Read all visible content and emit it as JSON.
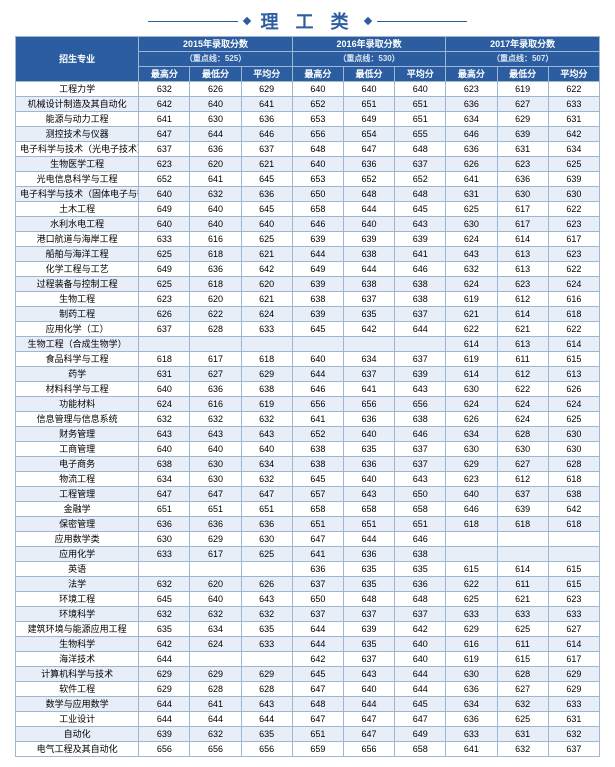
{
  "title": "理 工 类",
  "header": {
    "col_major": "招生专业",
    "years": [
      {
        "line1": "2015年录取分数",
        "line2": "（重点线：525）"
      },
      {
        "line1": "2016年录取分数",
        "line2": "（重点线：530）"
      },
      {
        "line1": "2017年录取分数",
        "line2": "（重点线：507）"
      }
    ],
    "subcols": [
      "最高分",
      "最低分",
      "平均分",
      "最高分",
      "最低分",
      "平均分",
      "最高分",
      "最低分",
      "平均分"
    ]
  },
  "rows": [
    [
      "工程力学",
      "632",
      "626",
      "629",
      "640",
      "640",
      "640",
      "623",
      "619",
      "622"
    ],
    [
      "机械设计制造及其自动化",
      "642",
      "640",
      "641",
      "652",
      "651",
      "651",
      "636",
      "627",
      "633"
    ],
    [
      "能源与动力工程",
      "641",
      "630",
      "636",
      "653",
      "649",
      "651",
      "634",
      "629",
      "631"
    ],
    [
      "测控技术与仪器",
      "647",
      "644",
      "646",
      "656",
      "654",
      "655",
      "646",
      "639",
      "642"
    ],
    [
      "电子科学与技术（光电子技术）",
      "637",
      "636",
      "637",
      "648",
      "647",
      "648",
      "636",
      "631",
      "634"
    ],
    [
      "生物医学工程",
      "623",
      "620",
      "621",
      "640",
      "636",
      "637",
      "626",
      "623",
      "625"
    ],
    [
      "光电信息科学与工程",
      "652",
      "641",
      "645",
      "653",
      "652",
      "652",
      "641",
      "636",
      "639"
    ],
    [
      "电子科学与技术（固体电子与微电子）",
      "640",
      "632",
      "636",
      "650",
      "648",
      "648",
      "631",
      "630",
      "630"
    ],
    [
      "土木工程",
      "649",
      "640",
      "645",
      "658",
      "644",
      "645",
      "625",
      "617",
      "622"
    ],
    [
      "水利水电工程",
      "640",
      "640",
      "640",
      "646",
      "640",
      "643",
      "630",
      "617",
      "623"
    ],
    [
      "港口航道与海岸工程",
      "633",
      "616",
      "625",
      "639",
      "639",
      "639",
      "624",
      "614",
      "617"
    ],
    [
      "船舶与海洋工程",
      "625",
      "618",
      "621",
      "644",
      "638",
      "641",
      "643",
      "613",
      "623"
    ],
    [
      "化学工程与工艺",
      "649",
      "636",
      "642",
      "649",
      "644",
      "646",
      "632",
      "613",
      "622"
    ],
    [
      "过程装备与控制工程",
      "625",
      "618",
      "620",
      "639",
      "638",
      "638",
      "624",
      "623",
      "624"
    ],
    [
      "生物工程",
      "623",
      "620",
      "621",
      "638",
      "637",
      "638",
      "619",
      "612",
      "616"
    ],
    [
      "制药工程",
      "626",
      "622",
      "624",
      "639",
      "635",
      "637",
      "621",
      "614",
      "618"
    ],
    [
      "应用化学（工）",
      "637",
      "628",
      "633",
      "645",
      "642",
      "644",
      "622",
      "621",
      "622"
    ],
    [
      "生物工程（合成生物学）",
      "",
      "",
      "",
      "",
      "",
      "",
      "614",
      "613",
      "614"
    ],
    [
      "食品科学与工程",
      "618",
      "617",
      "618",
      "640",
      "634",
      "637",
      "619",
      "611",
      "615"
    ],
    [
      "药学",
      "631",
      "627",
      "629",
      "644",
      "637",
      "639",
      "614",
      "612",
      "613"
    ],
    [
      "材料科学与工程",
      "640",
      "636",
      "638",
      "646",
      "641",
      "643",
      "630",
      "622",
      "626"
    ],
    [
      "功能材料",
      "624",
      "616",
      "619",
      "656",
      "656",
      "656",
      "624",
      "624",
      "624"
    ],
    [
      "信息管理与信息系统",
      "632",
      "632",
      "632",
      "641",
      "636",
      "638",
      "626",
      "624",
      "625"
    ],
    [
      "财务管理",
      "643",
      "643",
      "643",
      "652",
      "640",
      "646",
      "634",
      "628",
      "630"
    ],
    [
      "工商管理",
      "640",
      "640",
      "640",
      "638",
      "635",
      "637",
      "630",
      "630",
      "630"
    ],
    [
      "电子商务",
      "638",
      "630",
      "634",
      "638",
      "636",
      "637",
      "629",
      "627",
      "628"
    ],
    [
      "物流工程",
      "634",
      "630",
      "632",
      "645",
      "640",
      "643",
      "623",
      "612",
      "618"
    ],
    [
      "工程管理",
      "647",
      "647",
      "647",
      "657",
      "643",
      "650",
      "640",
      "637",
      "638"
    ],
    [
      "金融学",
      "651",
      "651",
      "651",
      "658",
      "658",
      "658",
      "646",
      "639",
      "642"
    ],
    [
      "保密管理",
      "636",
      "636",
      "636",
      "651",
      "651",
      "651",
      "618",
      "618",
      "618"
    ],
    [
      "应用数学类",
      "630",
      "629",
      "630",
      "647",
      "644",
      "646",
      "",
      "",
      ""
    ],
    [
      "应用化学",
      "633",
      "617",
      "625",
      "641",
      "636",
      "638",
      "",
      "",
      ""
    ],
    [
      "英语",
      "",
      "",
      "",
      "636",
      "635",
      "635",
      "615",
      "614",
      "615"
    ],
    [
      "法学",
      "632",
      "620",
      "626",
      "637",
      "635",
      "636",
      "622",
      "611",
      "615"
    ],
    [
      "环境工程",
      "645",
      "640",
      "643",
      "650",
      "648",
      "648",
      "625",
      "621",
      "623"
    ],
    [
      "环境科学",
      "632",
      "632",
      "632",
      "637",
      "637",
      "637",
      "633",
      "633",
      "633"
    ],
    [
      "建筑环境与能源应用工程",
      "635",
      "634",
      "635",
      "644",
      "639",
      "642",
      "629",
      "625",
      "627"
    ],
    [
      "生物科学",
      "642",
      "624",
      "633",
      "644",
      "635",
      "640",
      "616",
      "611",
      "614"
    ],
    [
      "海洋技术",
      "644",
      "",
      "",
      "642",
      "637",
      "640",
      "619",
      "615",
      "617"
    ],
    [
      "计算机科学与技术",
      "629",
      "629",
      "629",
      "645",
      "643",
      "644",
      "630",
      "628",
      "629"
    ],
    [
      "软件工程",
      "629",
      "628",
      "628",
      "647",
      "640",
      "644",
      "636",
      "627",
      "629"
    ],
    [
      "数学与应用数学",
      "644",
      "641",
      "643",
      "648",
      "644",
      "645",
      "634",
      "632",
      "633"
    ],
    [
      "工业设计",
      "644",
      "644",
      "644",
      "647",
      "647",
      "647",
      "636",
      "625",
      "631"
    ],
    [
      "自动化",
      "639",
      "632",
      "635",
      "651",
      "647",
      "649",
      "633",
      "631",
      "632"
    ],
    [
      "电气工程及其自动化",
      "656",
      "656",
      "656",
      "659",
      "656",
      "658",
      "641",
      "632",
      "637"
    ]
  ],
  "style": {
    "header_bg": "#2b5da0",
    "border": "#9db7d3",
    "alt_bg": "#e8eef7",
    "title_color": "#2b5da0"
  }
}
